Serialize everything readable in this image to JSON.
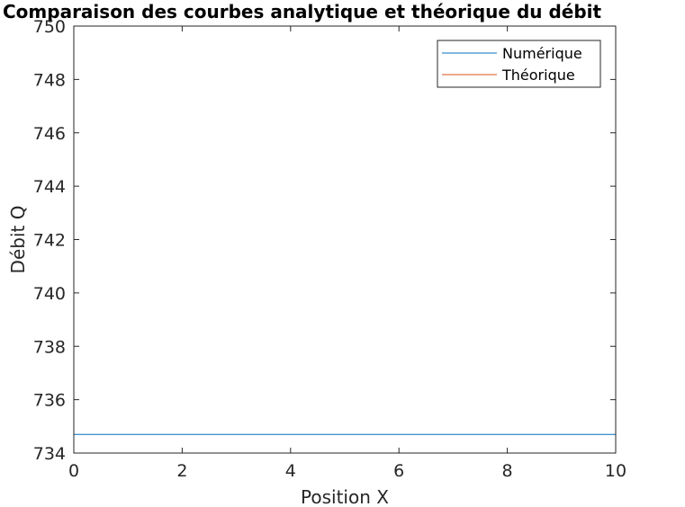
{
  "chart_data": {
    "type": "line",
    "title": "Comparaison des courbes analytique et théorique du débit",
    "xlabel": "Position X",
    "ylabel": "Débit Q",
    "xlim": [
      0,
      10
    ],
    "ylim": [
      734,
      750
    ],
    "xticks": [
      0,
      2,
      4,
      6,
      8,
      10
    ],
    "yticks": [
      734,
      736,
      738,
      740,
      742,
      744,
      746,
      748,
      750
    ],
    "grid": false,
    "legend_position": "top-right",
    "series": [
      {
        "name": "Numérique",
        "color": "#0072BD",
        "x": [
          0,
          10
        ],
        "y": [
          734.7,
          734.7
        ]
      },
      {
        "name": "Théorique",
        "color": "#D95319",
        "x": [
          0,
          10
        ],
        "y": [
          750,
          750
        ]
      }
    ]
  }
}
